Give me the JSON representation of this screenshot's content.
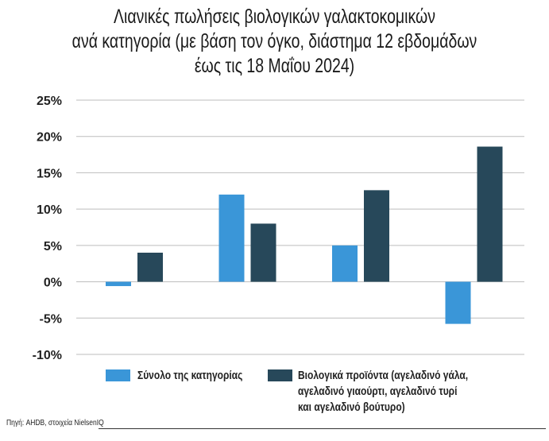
{
  "chart_data": {
    "type": "bar",
    "title": [
      "Λιανικές πωλήσεις βιολογικών γαλακτοκομικών",
      "ανά κατηγορία (με βάση τον όγκο, διάστημα 12 εβδομάδων",
      "έως τις 18 Μαΐου 2024)"
    ],
    "categories": [
      "",
      "",
      "",
      ""
    ],
    "series": [
      {
        "name": "Σύνολο της κατηγορίας",
        "color": "#3a96d8",
        "values": [
          -0.6,
          12.0,
          5.0,
          -5.8
        ]
      },
      {
        "name": "Βιολογικά προϊόντα (αγελαδινό γάλα, αγελαδινό γιαούρτι, αγελαδινό τυρί και αγελαδινό βούτυρο)",
        "name_lines": [
          "Βιολογικά προϊόντα (αγελαδινό γάλα,",
          "αγελαδινό γιαούρτι, αγελαδινό τυρί",
          "και αγελαδινό βούτυρο)"
        ],
        "color": "#27485a",
        "values": [
          4.0,
          8.0,
          12.6,
          18.6
        ]
      }
    ],
    "yticks": [
      "25%",
      "20%",
      "15%",
      "10%",
      "5%",
      "0%",
      "-5%",
      "-10%"
    ],
    "ytick_values": [
      25,
      20,
      15,
      10,
      5,
      0,
      -5,
      -10
    ],
    "ylim": [
      -10,
      25
    ],
    "xlabel": "",
    "ylabel": "",
    "grid": true,
    "legend_position": "bottom",
    "source": "Πηγή: AHDB, στοιχεία NielsenIQ"
  }
}
